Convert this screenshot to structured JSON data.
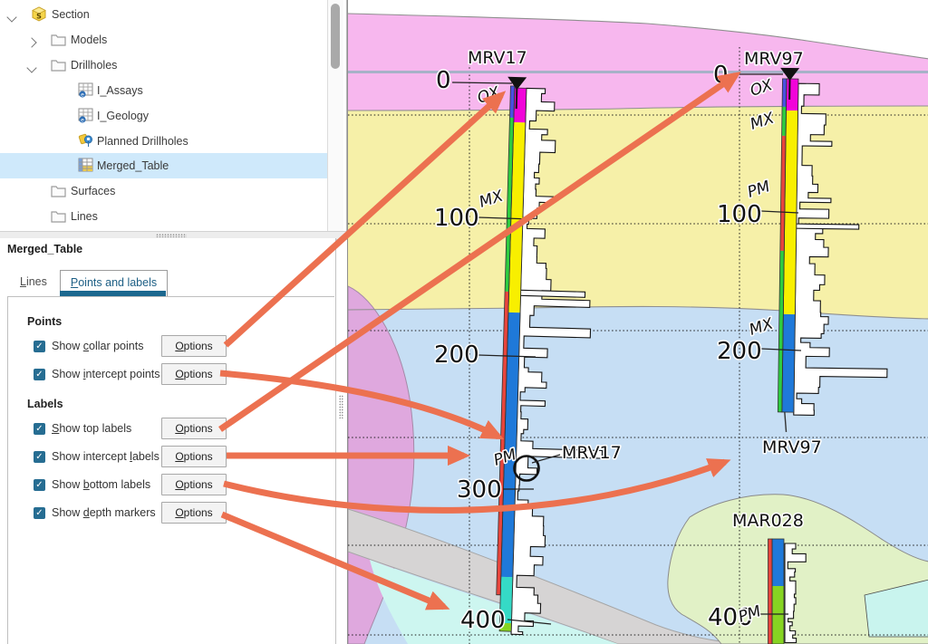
{
  "tree": {
    "items": [
      {
        "label": "Section"
      },
      {
        "label": "Models"
      },
      {
        "label": "Drillholes"
      },
      {
        "label": "I_Assays"
      },
      {
        "label": "I_Geology"
      },
      {
        "label": "Planned Drillholes"
      },
      {
        "label": "Merged_Table"
      },
      {
        "label": "Surfaces"
      },
      {
        "label": "Lines"
      }
    ]
  },
  "panel": {
    "title": "Merged_Table",
    "tabs": {
      "lines": {
        "mn": "L",
        "rest": "ines"
      },
      "points": {
        "mn": "P",
        "rest": "oints and labels"
      }
    },
    "points_heading": "Points",
    "labels_heading": "Labels",
    "rows": [
      {
        "pre": "Show ",
        "mn": "c",
        "rest": "ollar points"
      },
      {
        "pre": "Show ",
        "mn": "i",
        "rest": "ntercept points"
      },
      {
        "pre": "",
        "mn": "S",
        "rest": "how top labels"
      },
      {
        "pre": "Show intercept ",
        "mn": "l",
        "rest": "abels"
      },
      {
        "pre": "Show ",
        "mn": "b",
        "rest": "ottom labels"
      },
      {
        "pre": "Show ",
        "mn": "d",
        "rest": "epth markers"
      }
    ],
    "options": {
      "mn": "O",
      "rest": "ptions"
    }
  },
  "view": {
    "mrv17": {
      "name": "MRV17",
      "depths": [
        "0",
        "100",
        "200",
        "300",
        "400"
      ],
      "intervals": [
        "OX",
        "MX",
        "PM"
      ]
    },
    "mrv97": {
      "name": "MRV97",
      "depths": [
        "0",
        "100",
        "200"
      ],
      "intervals": [
        "OX",
        "MX",
        "PM",
        "MX"
      ]
    },
    "mar028": {
      "name": "MAR028",
      "depths": [
        "400"
      ],
      "intervals": [
        "PM"
      ]
    }
  },
  "colors": {
    "arrow_orange": "#ec7150",
    "tree_selection": "#cfe9fb",
    "tab_accent": "#1c688f",
    "checkbox": "#266d92",
    "topo_line": "#a7b1c8",
    "geology_pink": "#f7b7ee",
    "geology_yellow": "#f6f0a8",
    "geology_blue": "#c6def4",
    "geology_purple": "#dfa8de",
    "geology_gray": "#d6d4d4",
    "geology_cyan": "#cdf6f0",
    "geology_green": "#e1f1c6",
    "strip_magenta": "#f104d9",
    "strip_yellow": "#f8ef00",
    "strip_blue": "#1f79d9",
    "strip_cyan": "#35dac6",
    "strip_lime": "#86d422",
    "strip_green": "#2ecc40",
    "strip_red": "#e8453c",
    "strip_violet": "#4b50e1"
  }
}
